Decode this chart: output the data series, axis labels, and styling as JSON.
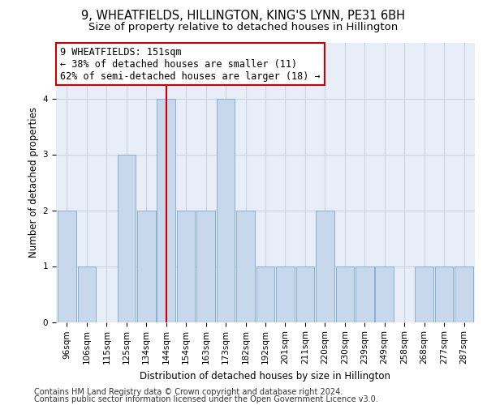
{
  "title1": "9, WHEATFIELDS, HILLINGTON, KING'S LYNN, PE31 6BH",
  "title2": "Size of property relative to detached houses in Hillington",
  "xlabel": "Distribution of detached houses by size in Hillington",
  "ylabel": "Number of detached properties",
  "categories": [
    "96sqm",
    "106sqm",
    "115sqm",
    "125sqm",
    "134sqm",
    "144sqm",
    "154sqm",
    "163sqm",
    "173sqm",
    "182sqm",
    "192sqm",
    "201sqm",
    "211sqm",
    "220sqm",
    "230sqm",
    "239sqm",
    "249sqm",
    "258sqm",
    "268sqm",
    "277sqm",
    "287sqm"
  ],
  "values": [
    2,
    1,
    0,
    3,
    2,
    4,
    2,
    2,
    4,
    2,
    1,
    1,
    1,
    2,
    1,
    1,
    1,
    0,
    1,
    1,
    1
  ],
  "bar_color": "#c8d8ec",
  "bar_edge_color": "#8ab0cc",
  "grid_color": "#c8d4e0",
  "vline_x": 5,
  "vline_color": "#cc0000",
  "annotation_text": "9 WHEATFIELDS: 151sqm\n← 38% of detached houses are smaller (11)\n62% of semi-detached houses are larger (18) →",
  "annotation_box_color": "#ffffff",
  "annotation_box_edge_color": "#cc0000",
  "footer1": "Contains HM Land Registry data © Crown copyright and database right 2024.",
  "footer2": "Contains public sector information licensed under the Open Government Licence v3.0.",
  "ylim": [
    0,
    5
  ],
  "yticks": [
    0,
    1,
    2,
    3,
    4
  ],
  "bg_color": "#ffffff",
  "plot_bg_color": "#e8eef8",
  "title1_fontsize": 10.5,
  "title2_fontsize": 9.5,
  "xlabel_fontsize": 8.5,
  "ylabel_fontsize": 8.5,
  "tick_fontsize": 7.5,
  "annotation_fontsize": 8.5,
  "footer_fontsize": 7.0
}
